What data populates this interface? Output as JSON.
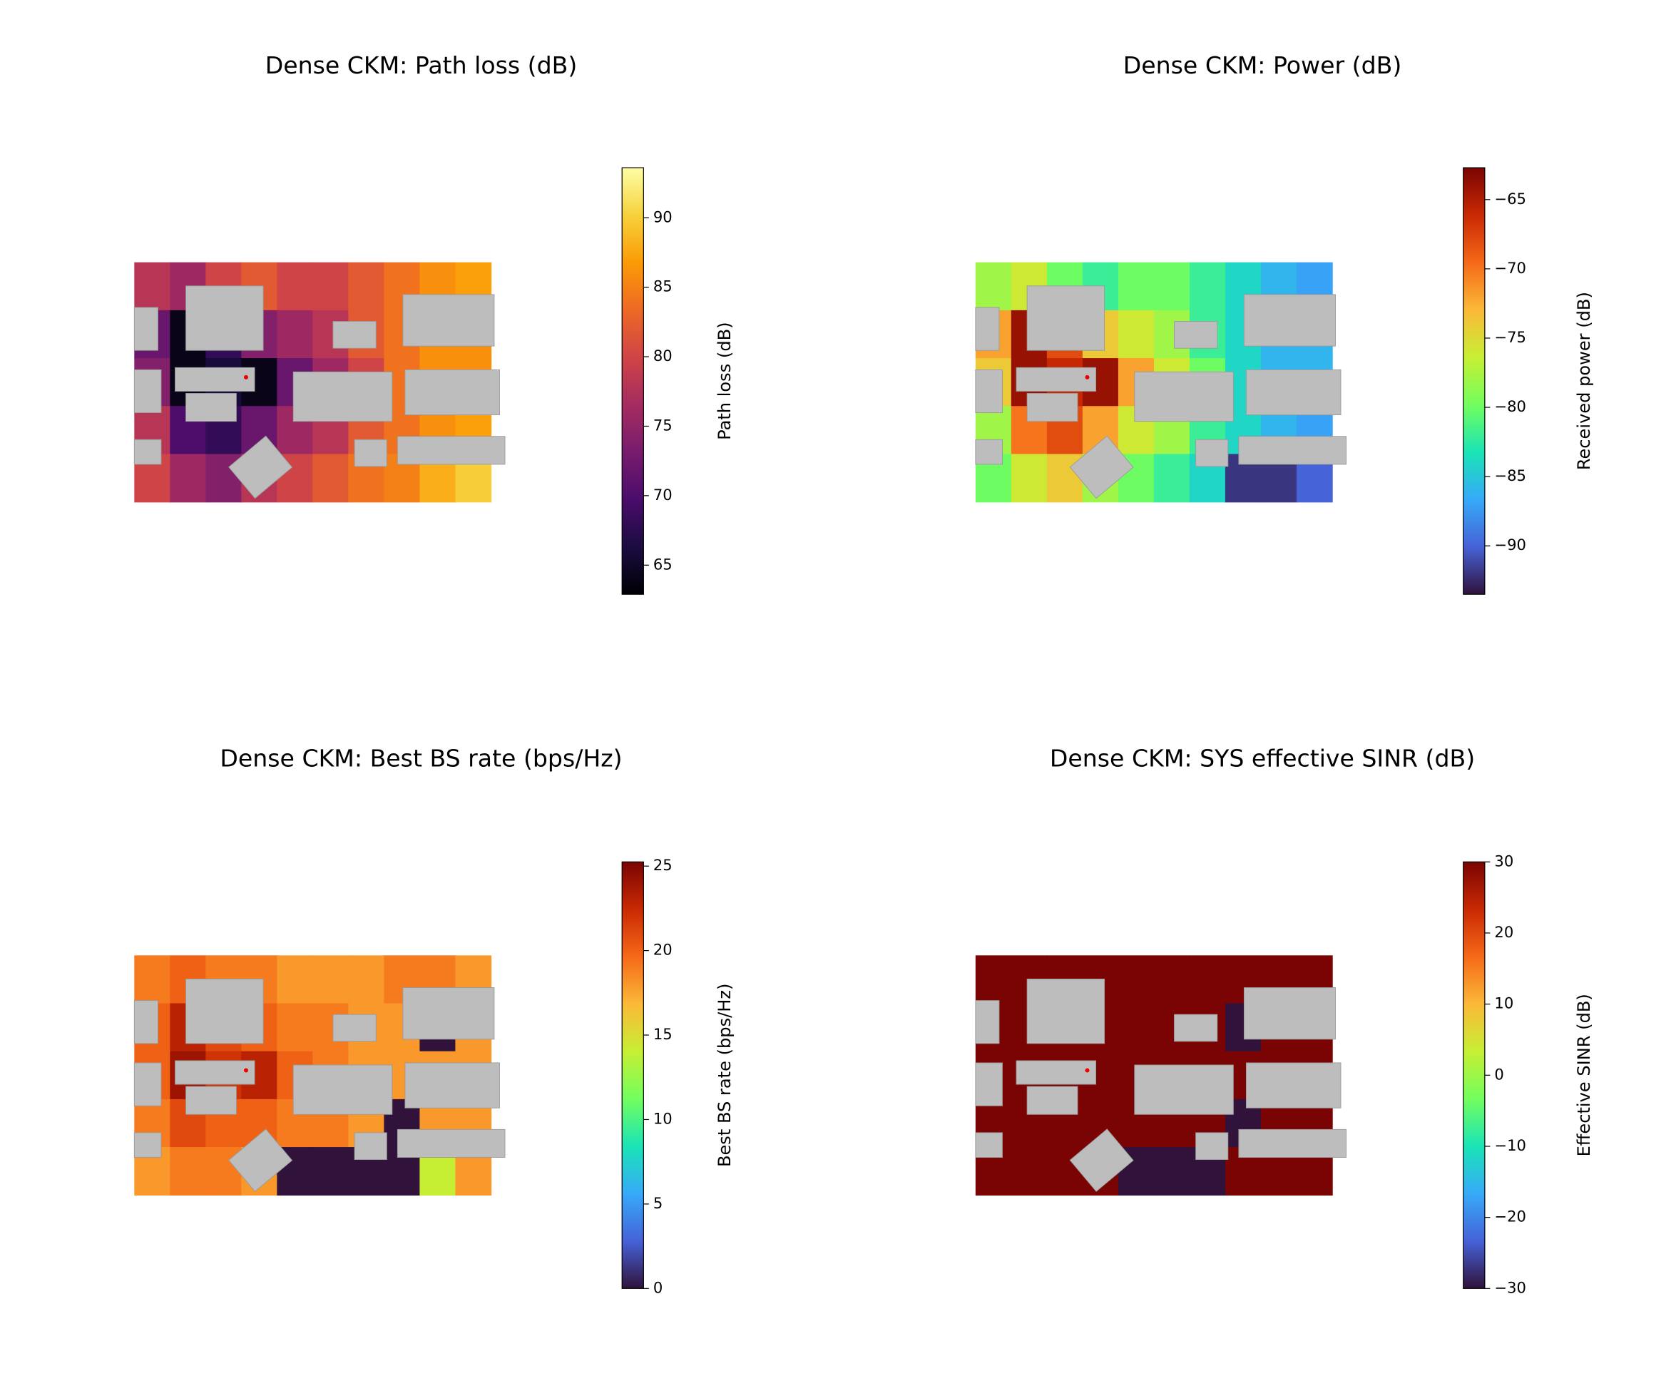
{
  "chart_data": [
    {
      "type": "heatmap",
      "title": "Dense CKM: Path loss (dB)",
      "colorbar_label": "Path loss (dB)",
      "colormap": "inferno",
      "clim": [
        62.9,
        93.6
      ],
      "cticks": [
        65,
        70,
        75,
        80,
        85,
        90
      ],
      "values": [
        [
          78,
          76,
          80,
          82,
          80,
          80,
          82,
          84,
          86,
          87
        ],
        [
          72,
          64,
          68,
          74,
          76,
          78,
          82,
          84,
          86,
          86
        ],
        [
          74,
          64,
          66,
          64,
          72,
          76,
          80,
          84,
          86,
          86
        ],
        [
          78,
          70,
          68,
          72,
          76,
          78,
          82,
          84,
          86,
          87
        ],
        [
          80,
          76,
          74,
          78,
          80,
          82,
          84,
          85,
          88,
          90
        ]
      ]
    },
    {
      "type": "heatmap",
      "title": "Dense CKM: Power (dB)",
      "colorbar_label": "Received power (dB)",
      "colormap": "turbo",
      "clim": [
        -93.5,
        -62.7
      ],
      "cticks": [
        {
          "value": -90,
          "label": "−90"
        },
        {
          "value": -85,
          "label": "−85"
        },
        {
          "value": -80,
          "label": "−80"
        },
        {
          "value": -75,
          "label": "−75"
        },
        {
          "value": -70,
          "label": "−70"
        },
        {
          "value": -65,
          "label": "−65"
        }
      ],
      "values": [
        [
          -78,
          -76,
          -80,
          -82,
          -80,
          -80,
          -82,
          -84,
          -86,
          -87
        ],
        [
          -72,
          -64,
          -68,
          -74,
          -76,
          -78,
          -82,
          -84,
          -86,
          -86
        ],
        [
          -74,
          -64,
          -66,
          -64,
          -72,
          -76,
          -80,
          -84,
          -86,
          -86
        ],
        [
          -78,
          -70,
          -68,
          -72,
          -76,
          -78,
          -82,
          -84,
          -86,
          -87
        ],
        [
          -80,
          -76,
          -74,
          -78,
          -80,
          -82,
          -84,
          -92,
          -92,
          -90
        ]
      ]
    },
    {
      "type": "heatmap",
      "title": "Dense CKM: Best BS rate (bps/Hz)",
      "colorbar_label": "Best BS rate (bps/Hz)",
      "colormap": "turbo",
      "clim": [
        0,
        25.25
      ],
      "cticks": [
        0,
        5,
        10,
        15,
        20,
        25
      ],
      "values": [
        [
          19,
          20,
          19,
          19,
          18,
          18,
          18,
          19,
          19,
          18
        ],
        [
          20,
          23,
          21,
          20,
          19,
          19,
          18,
          18,
          0,
          18
        ],
        [
          20,
          24,
          22,
          23,
          20,
          19,
          18,
          18,
          18,
          18
        ],
        [
          19,
          21,
          20,
          20,
          19,
          19,
          18,
          0,
          18,
          18
        ],
        [
          18,
          19,
          19,
          18,
          0,
          0,
          0,
          0,
          14,
          18
        ]
      ]
    },
    {
      "type": "heatmap",
      "title": "Dense CKM: SYS effective SINR (dB)",
      "colorbar_label": "Effective SINR (dB)",
      "colormap": "turbo",
      "clim": [
        -30,
        30
      ],
      "cticks": [
        {
          "value": -30,
          "label": "−30"
        },
        {
          "value": -20,
          "label": "−20"
        },
        {
          "value": -10,
          "label": "−10"
        },
        0,
        10,
        20,
        30
      ],
      "values": [
        [
          30,
          30,
          30,
          30,
          30,
          30,
          30,
          30,
          30,
          30
        ],
        [
          30,
          30,
          30,
          30,
          30,
          30,
          30,
          -30,
          30,
          30
        ],
        [
          30,
          30,
          30,
          30,
          30,
          30,
          30,
          30,
          30,
          30
        ],
        [
          30,
          30,
          30,
          30,
          30,
          30,
          30,
          -30,
          30,
          30
        ],
        [
          30,
          30,
          30,
          30,
          -30,
          -30,
          -30,
          30,
          30,
          30
        ]
      ]
    }
  ]
}
